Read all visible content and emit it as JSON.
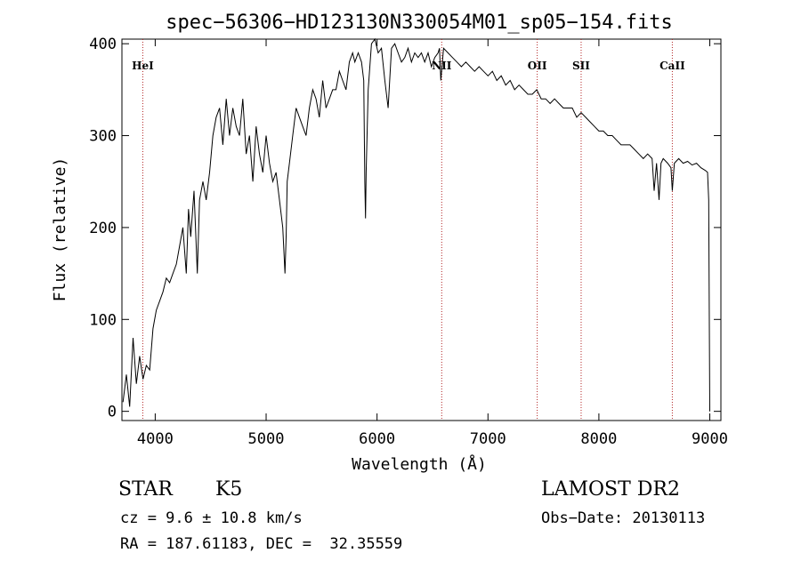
{
  "chart_data": {
    "type": "line",
    "title": "spec−56306−HD123130N330054M01_sp05−154.fits",
    "xlabel": "Wavelength (Å)",
    "ylabel": "Flux (relative)",
    "xlim": [
      3700,
      9100
    ],
    "ylim": [
      -10,
      405
    ],
    "xticks": [
      4000,
      5000,
      6000,
      7000,
      8000,
      9000
    ],
    "yticks": [
      0,
      100,
      200,
      300,
      400
    ],
    "grid": false,
    "line_color": "#000000",
    "annotation_color": "#b22222",
    "lines": [
      {
        "label": "HeI",
        "x": 3888
      },
      {
        "label": "NII",
        "x": 6583
      },
      {
        "label": "OII",
        "x": 7444
      },
      {
        "label": "SII",
        "x": 7840
      },
      {
        "label": "CaII",
        "x": 8662
      }
    ],
    "series": [
      {
        "x": [
          3710,
          3740,
          3770,
          3800,
          3830,
          3860,
          3890,
          3920,
          3950,
          3980,
          4010,
          4040,
          4070,
          4100,
          4130,
          4160,
          4190,
          4220,
          4250,
          4280,
          4300,
          4320,
          4350,
          4380,
          4400,
          4430,
          4460,
          4490,
          4520,
          4550,
          4580,
          4610,
          4640,
          4670,
          4700,
          4730,
          4760,
          4790,
          4820,
          4850,
          4880,
          4910,
          4940,
          4970,
          5000,
          5030,
          5060,
          5090,
          5120,
          5150,
          5170,
          5180,
          5190,
          5210,
          5240,
          5270,
          5300,
          5330,
          5360,
          5390,
          5420,
          5450,
          5480,
          5510,
          5540,
          5570,
          5600,
          5630,
          5660,
          5690,
          5720,
          5750,
          5780,
          5800,
          5830,
          5860,
          5880,
          5890,
          5896,
          5902,
          5920,
          5950,
          5980,
          6010,
          6040,
          6070,
          6100,
          6130,
          6160,
          6190,
          6220,
          6250,
          6280,
          6310,
          6340,
          6370,
          6400,
          6430,
          6460,
          6490,
          6520,
          6550,
          6563,
          6575,
          6600,
          6640,
          6680,
          6720,
          6760,
          6800,
          6840,
          6880,
          6920,
          6960,
          7000,
          7040,
          7080,
          7120,
          7160,
          7200,
          7240,
          7280,
          7320,
          7360,
          7400,
          7440,
          7480,
          7520,
          7560,
          7600,
          7640,
          7680,
          7720,
          7760,
          7800,
          7840,
          7880,
          7920,
          7960,
          8000,
          8040,
          8080,
          8120,
          8160,
          8200,
          8240,
          8280,
          8320,
          8360,
          8400,
          8440,
          8480,
          8498,
          8520,
          8542,
          8560,
          8580,
          8620,
          8650,
          8662,
          8680,
          8720,
          8760,
          8800,
          8840,
          8880,
          8920,
          8960,
          8980,
          8990,
          9000
        ],
        "values": [
          10,
          40,
          5,
          80,
          30,
          60,
          35,
          50,
          45,
          90,
          110,
          120,
          130,
          145,
          140,
          150,
          160,
          180,
          200,
          150,
          220,
          190,
          240,
          150,
          230,
          250,
          230,
          260,
          300,
          320,
          330,
          290,
          340,
          300,
          330,
          310,
          300,
          340,
          280,
          300,
          250,
          310,
          280,
          260,
          300,
          270,
          250,
          260,
          230,
          200,
          150,
          190,
          250,
          270,
          300,
          330,
          320,
          310,
          300,
          330,
          350,
          340,
          320,
          360,
          330,
          340,
          350,
          350,
          370,
          360,
          350,
          380,
          390,
          380,
          390,
          380,
          360,
          250,
          210,
          260,
          350,
          400,
          420,
          390,
          395,
          360,
          330,
          395,
          400,
          390,
          380,
          385,
          395,
          380,
          390,
          385,
          390,
          380,
          390,
          375,
          385,
          390,
          395,
          360,
          395,
          390,
          385,
          380,
          375,
          380,
          375,
          370,
          375,
          370,
          365,
          370,
          360,
          365,
          355,
          360,
          350,
          355,
          350,
          345,
          345,
          350,
          340,
          340,
          335,
          340,
          335,
          330,
          330,
          330,
          320,
          325,
          320,
          315,
          310,
          305,
          305,
          300,
          300,
          295,
          290,
          290,
          290,
          285,
          280,
          275,
          280,
          275,
          240,
          270,
          230,
          270,
          275,
          270,
          265,
          240,
          270,
          275,
          270,
          272,
          268,
          270,
          265,
          262,
          260,
          230,
          0
        ]
      }
    ]
  },
  "info": {
    "object_class": "STAR",
    "subclass": "K5",
    "survey": "LAMOST DR2",
    "cz": "cz = 9.6 ± 10.8 km/s",
    "obs_date": "Obs−Date: 20130113",
    "radec": "RA = 187.61183, DEC =  32.35559"
  }
}
